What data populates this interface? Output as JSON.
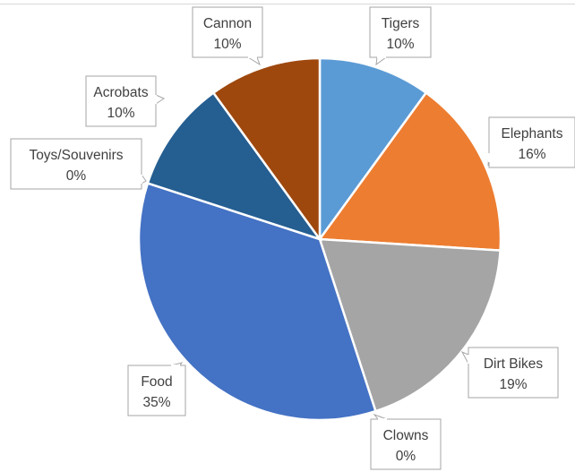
{
  "chart_data": {
    "type": "pie",
    "title": "",
    "slices": [
      {
        "name": "Tigers",
        "value": 10,
        "label": "10%",
        "color": "#5b9bd5"
      },
      {
        "name": "Elephants",
        "value": 16,
        "label": "16%",
        "color": "#ed7d31"
      },
      {
        "name": "Dirt Bikes",
        "value": 19,
        "label": "19%",
        "color": "#a5a5a5"
      },
      {
        "name": "Clowns",
        "value": 0,
        "label": "0%",
        "color": "#ffc000"
      },
      {
        "name": "Food",
        "value": 35,
        "label": "35%",
        "color": "#4472c4"
      },
      {
        "name": "Toys/Souvenirs",
        "value": 0,
        "label": "0%",
        "color": "#70ad47"
      },
      {
        "name": "Acrobats",
        "value": 10,
        "label": "10%",
        "color": "#255e91"
      },
      {
        "name": "Cannon",
        "value": 10,
        "label": "10%",
        "color": "#9e480e"
      }
    ],
    "start_angle_deg": 0,
    "direction": "clockwise",
    "data_labels": "callouts"
  }
}
